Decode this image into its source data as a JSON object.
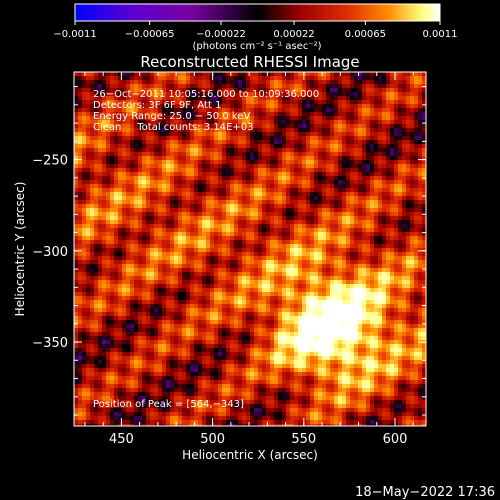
{
  "chart_data": {
    "type": "heatmap",
    "title": "Reconstructed RHESSI Image",
    "xlabel": "Heliocentric X (arcsec)",
    "ylabel": "Heliocentric Y (arcsec)",
    "xlim": [
      424,
      617
    ],
    "ylim": [
      -396,
      -202
    ],
    "xticks": [
      "450",
      "500",
      "550",
      "600"
    ],
    "xtick_values": [
      450,
      500,
      550,
      600
    ],
    "yticks": [
      "−250",
      "−300",
      "−350"
    ],
    "ytick_values": [
      -250,
      -300,
      -350
    ],
    "colorbar": {
      "min": -0.0011,
      "max": 0.0011,
      "tick_labels": [
        "−0.0011",
        "−0.00065",
        "−0.00022",
        "0.00022",
        "0.00065",
        "0.0011"
      ],
      "tick_values": [
        -0.0011,
        -0.00065,
        -0.00022,
        0.00022,
        0.00065,
        0.0011
      ],
      "unit_label": "(photons cm⁻² s⁻¹ asec⁻²)",
      "colormap": [
        "#0000ff",
        "#5a00d0",
        "#7a00a0",
        "#000000",
        "#a00000",
        "#e03000",
        "#ff9000",
        "#ffff80",
        "#ffffff"
      ]
    },
    "annotations": [
      "26−Oct−2011 10:05:16.000 to 10:09:36.000",
      "Detectors: 3F 6F 9F, Att 1",
      "Energy Range: 25.0 − 50.0 keV",
      "Clean     Total counts: 3.14E+03"
    ],
    "peak_label": "Position of Peak = [564,−343]",
    "peak": {
      "x": 564,
      "y": -343
    }
  },
  "footer": {
    "date": "18−May−2022 17:36"
  }
}
